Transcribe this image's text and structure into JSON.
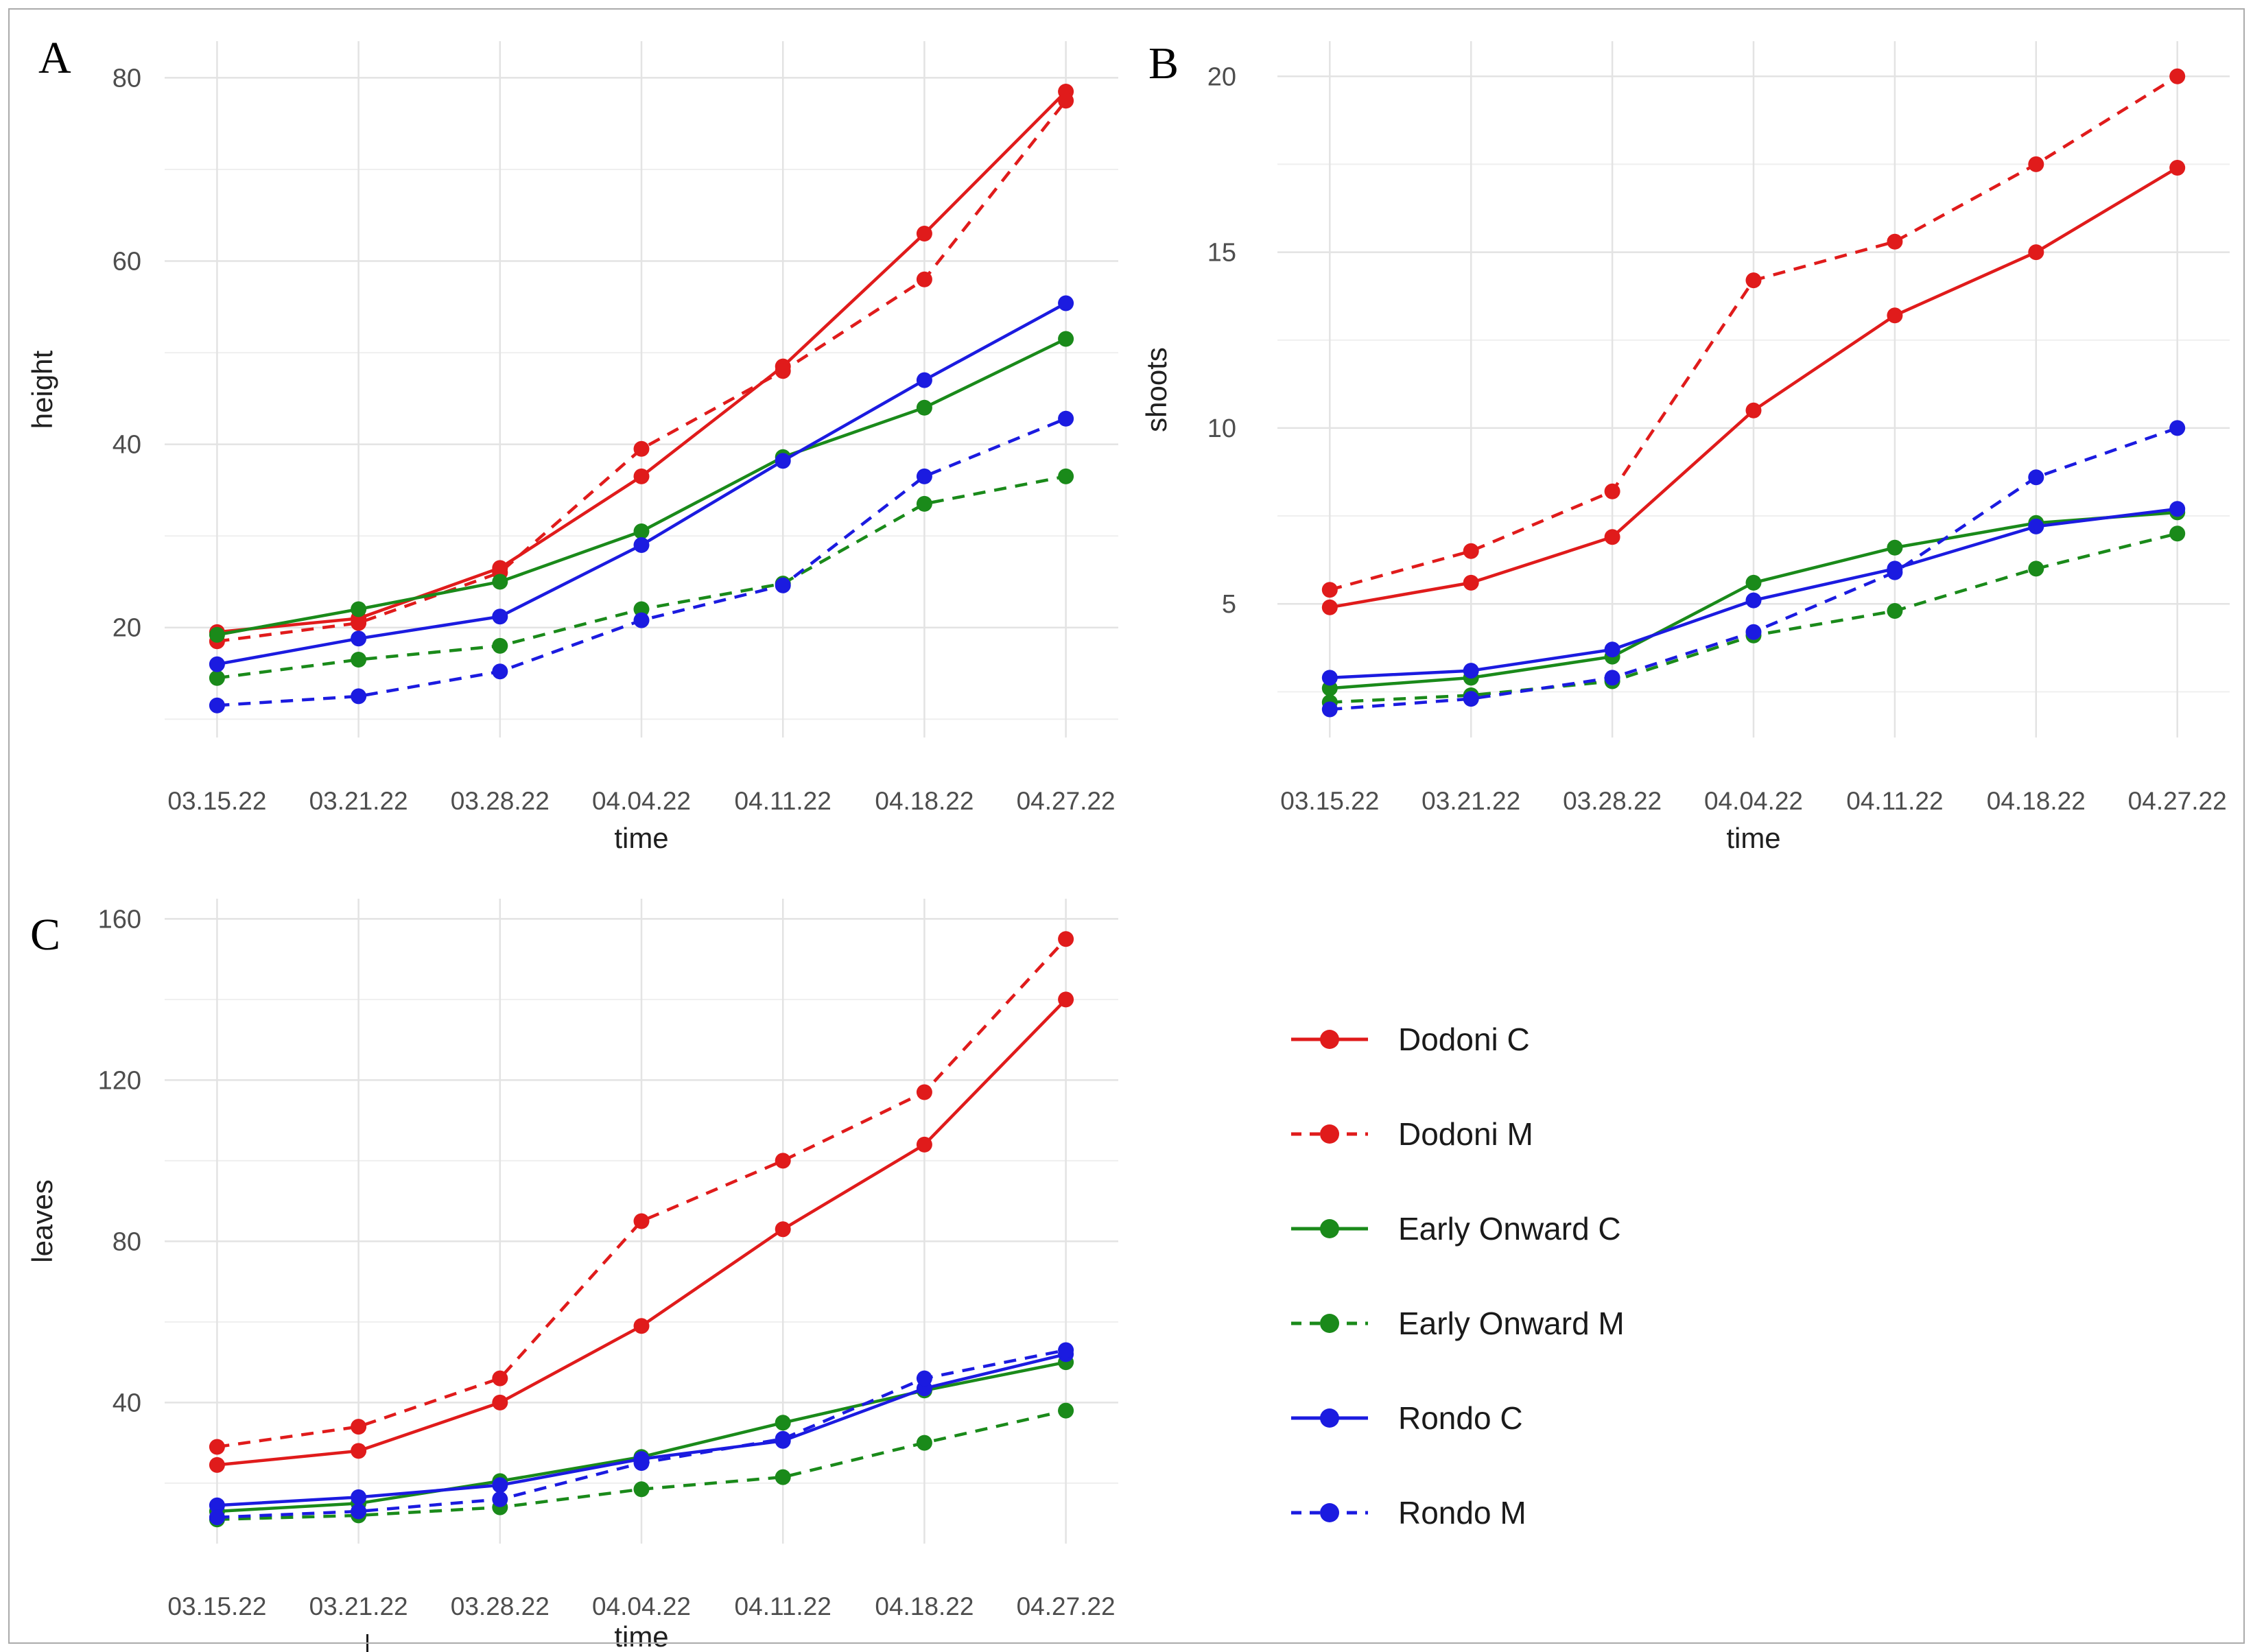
{
  "figure": {
    "background": "#ffffff",
    "border_color": "#ababab"
  },
  "colors": {
    "red": "#e01b1b",
    "green": "#1a8a1a",
    "blue": "#1b1be0",
    "grid_major": "#e3e3e3",
    "grid_minor": "#efefef",
    "tick_text": "#4d4d4d",
    "axis_title": "#202020",
    "legend_text": "#1a1a1a",
    "panel_letter": "#000000"
  },
  "chart_data": {
    "type": "line",
    "xlabel": "time",
    "categories": [
      "03.15.22",
      "03.21.22",
      "03.28.22",
      "04.04.22",
      "04.11.22",
      "04.18.22",
      "04.27.22"
    ],
    "legend_position": "bottom-right",
    "grid": true,
    "panels": [
      {
        "label": "A",
        "ylabel": "height",
        "yticks": [
          20,
          40,
          60,
          80
        ],
        "minor_gridlines": [
          10,
          30,
          50,
          70
        ],
        "ylim": [
          8,
          84
        ],
        "series": [
          {
            "name": "Dodoni C",
            "color": "#e01b1b",
            "dashed": false,
            "values": [
              19.5,
              21.0,
              26.5,
              36.5,
              48.5,
              63.0,
              78.5
            ]
          },
          {
            "name": "Dodoni M",
            "color": "#e01b1b",
            "dashed": true,
            "values": [
              18.5,
              20.5,
              26.0,
              39.5,
              48.0,
              58.0,
              77.5
            ]
          },
          {
            "name": "Early Onward C",
            "color": "#1a8a1a",
            "dashed": false,
            "values": [
              19.2,
              22.0,
              25.0,
              30.5,
              38.6,
              44.0,
              51.5
            ]
          },
          {
            "name": "Early Onward M",
            "color": "#1a8a1a",
            "dashed": true,
            "values": [
              14.5,
              16.5,
              18.0,
              22.0,
              24.8,
              33.5,
              36.5
            ]
          },
          {
            "name": "Rondo C",
            "color": "#1b1be0",
            "dashed": false,
            "values": [
              16.0,
              18.8,
              21.2,
              29.0,
              38.2,
              47.0,
              55.4
            ]
          },
          {
            "name": "Rondo M",
            "color": "#1b1be0",
            "dashed": true,
            "values": [
              11.5,
              12.5,
              15.2,
              20.8,
              24.6,
              36.5,
              42.8
            ]
          }
        ]
      },
      {
        "label": "B",
        "ylabel": "shoots",
        "yticks": [
          5,
          10,
          15,
          20
        ],
        "minor_gridlines": [
          2.5,
          7.5,
          12.5,
          17.5
        ],
        "ylim": [
          1.2,
          21
        ],
        "series": [
          {
            "name": "Dodoni C",
            "color": "#e01b1b",
            "dashed": false,
            "values": [
              4.9,
              5.6,
              6.9,
              10.5,
              13.2,
              15.0,
              17.4
            ]
          },
          {
            "name": "Dodoni M",
            "color": "#e01b1b",
            "dashed": true,
            "values": [
              5.4,
              6.5,
              8.2,
              14.2,
              15.3,
              17.5,
              20.0
            ]
          },
          {
            "name": "Early Onward C",
            "color": "#1a8a1a",
            "dashed": false,
            "values": [
              2.6,
              2.9,
              3.5,
              5.6,
              6.6,
              7.3,
              7.6
            ]
          },
          {
            "name": "Early Onward M",
            "color": "#1a8a1a",
            "dashed": true,
            "values": [
              2.2,
              2.4,
              2.8,
              4.1,
              4.8,
              6.0,
              7.0
            ]
          },
          {
            "name": "Rondo C",
            "color": "#1b1be0",
            "dashed": false,
            "values": [
              2.9,
              3.1,
              3.7,
              5.1,
              6.0,
              7.2,
              7.7
            ]
          },
          {
            "name": "Rondo M",
            "color": "#1b1be0",
            "dashed": true,
            "values": [
              2.0,
              2.3,
              2.9,
              4.2,
              5.9,
              8.6,
              10.0
            ]
          }
        ]
      },
      {
        "label": "C",
        "ylabel": "leaves",
        "yticks": [
          40,
          80,
          120,
          160
        ],
        "minor_gridlines": [
          20,
          60,
          100,
          140
        ],
        "ylim": [
          5,
          165
        ],
        "series": [
          {
            "name": "Dodoni C",
            "color": "#e01b1b",
            "dashed": false,
            "values": [
              24.5,
              28.0,
              40.0,
              59.0,
              83.0,
              104.0,
              140.0
            ]
          },
          {
            "name": "Dodoni M",
            "color": "#e01b1b",
            "dashed": true,
            "values": [
              29.0,
              34.0,
              46.0,
              85.0,
              100.0,
              117.0,
              155.0
            ]
          },
          {
            "name": "Early Onward C",
            "color": "#1a8a1a",
            "dashed": false,
            "values": [
              13.0,
              15.0,
              20.5,
              26.5,
              35.0,
              43.0,
              50.0
            ]
          },
          {
            "name": "Early Onward M",
            "color": "#1a8a1a",
            "dashed": true,
            "values": [
              11.0,
              12.0,
              14.0,
              18.5,
              21.5,
              30.0,
              38.0
            ]
          },
          {
            "name": "Rondo C",
            "color": "#1b1be0",
            "dashed": false,
            "values": [
              14.5,
              16.5,
              19.5,
              26.0,
              30.5,
              43.5,
              52.0
            ]
          },
          {
            "name": "Rondo M",
            "color": "#1b1be0",
            "dashed": true,
            "values": [
              11.5,
              13.0,
              16.0,
              25.0,
              31.0,
              46.0,
              53.0
            ]
          }
        ]
      }
    ]
  },
  "legend": {
    "items": [
      {
        "label": "Dodoni C",
        "color": "#e01b1b",
        "dashed": false
      },
      {
        "label": "Dodoni M",
        "color": "#e01b1b",
        "dashed": true
      },
      {
        "label": "Early Onward C",
        "color": "#1a8a1a",
        "dashed": false
      },
      {
        "label": "Early Onward M",
        "color": "#1a8a1a",
        "dashed": true
      },
      {
        "label": "Rondo C",
        "color": "#1b1be0",
        "dashed": false
      },
      {
        "label": "Rondo M",
        "color": "#1b1be0",
        "dashed": true
      }
    ]
  }
}
